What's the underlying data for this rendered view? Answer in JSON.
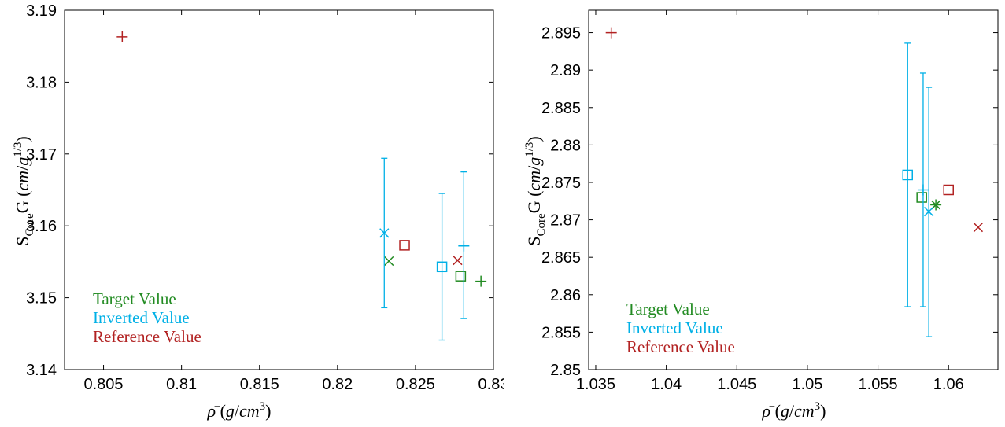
{
  "colors": {
    "target": "#228b22",
    "inverted": "#00b0e6",
    "reference": "#b22222",
    "axis": "#000000"
  },
  "chart_data": [
    {
      "type": "scatter",
      "xlabel": "ρ̄ (g/cm³)",
      "ylabel": "S_Core G (cm/g^1/3)",
      "xlim": [
        0.8025,
        0.83
      ],
      "ylim": [
        3.14,
        3.19
      ],
      "x_ticks": [
        "0.805",
        "0.81",
        "0.815",
        "0.82",
        "0.825",
        "0.83"
      ],
      "x_tick_values": [
        0.805,
        0.81,
        0.815,
        0.82,
        0.825,
        0.83
      ],
      "y_ticks": [
        "3.14",
        "3.15",
        "3.16",
        "3.17",
        "3.18",
        "3.19"
      ],
      "y_tick_values": [
        3.14,
        3.15,
        3.16,
        3.17,
        3.18,
        3.19
      ],
      "grid": false,
      "legend": {
        "placement": "bottom-left",
        "entries": [
          "Target Value",
          "Inverted Value",
          "Reference Value"
        ]
      },
      "series": [
        {
          "name": "Target Value",
          "color": "#228b22",
          "points": [
            {
              "x": 0.8233,
              "y": 3.1551,
              "marker": "x"
            },
            {
              "x": 0.8279,
              "y": 3.153,
              "marker": "square"
            },
            {
              "x": 0.8292,
              "y": 3.1523,
              "marker": "plus"
            }
          ]
        },
        {
          "name": "Inverted Value",
          "color": "#00b0e6",
          "points": [
            {
              "x": 0.823,
              "y": 3.159,
              "marker": "x",
              "err_low": 3.1486,
              "err_high": 3.1694
            },
            {
              "x": 0.8267,
              "y": 3.1543,
              "marker": "square",
              "err_low": 3.1441,
              "err_high": 3.1645
            },
            {
              "x": 0.8281,
              "y": 3.1572,
              "marker": "plus",
              "err_low": 3.1471,
              "err_high": 3.1675
            }
          ]
        },
        {
          "name": "Reference Value",
          "color": "#b22222",
          "points": [
            {
              "x": 0.8062,
              "y": 3.1863,
              "marker": "plus"
            },
            {
              "x": 0.8243,
              "y": 3.1573,
              "marker": "square"
            },
            {
              "x": 0.8277,
              "y": 3.1552,
              "marker": "x"
            }
          ]
        }
      ]
    },
    {
      "type": "scatter",
      "xlabel": "ρ̄ (g/cm³)",
      "ylabel": "S_Core G (cm/g^1/3)",
      "xlim": [
        1.0345,
        1.0635
      ],
      "ylim": [
        2.85,
        2.898
      ],
      "x_ticks": [
        "1.035",
        "1.04",
        "1.045",
        "1.05",
        "1.055",
        "1.06"
      ],
      "x_tick_values": [
        1.035,
        1.04,
        1.045,
        1.05,
        1.055,
        1.06
      ],
      "y_ticks": [
        "2.85",
        "2.855",
        "2.86",
        "2.865",
        "2.87",
        "2.875",
        "2.88",
        "2.885",
        "2.89",
        "2.895"
      ],
      "y_tick_values": [
        2.85,
        2.855,
        2.86,
        2.865,
        2.87,
        2.875,
        2.88,
        2.885,
        2.89,
        2.895
      ],
      "grid": false,
      "legend": {
        "placement": "bottom-left",
        "entries": [
          "Target Value",
          "Inverted Value",
          "Reference Value"
        ]
      },
      "series": [
        {
          "name": "Target Value",
          "color": "#228b22",
          "points": [
            {
              "x": 1.0581,
              "y": 2.873,
              "marker": "square"
            },
            {
              "x": 1.0591,
              "y": 2.872,
              "marker": "asterisk"
            }
          ]
        },
        {
          "name": "Inverted Value",
          "color": "#00b0e6",
          "points": [
            {
              "x": 1.0571,
              "y": 2.876,
              "marker": "square",
              "err_low": 2.8584,
              "err_high": 2.8936
            },
            {
              "x": 1.0582,
              "y": 2.874,
              "marker": "plus",
              "err_low": 2.8584,
              "err_high": 2.8896
            },
            {
              "x": 1.0586,
              "y": 2.8711,
              "marker": "x",
              "err_low": 2.8544,
              "err_high": 2.8877
            }
          ]
        },
        {
          "name": "Reference Value",
          "color": "#b22222",
          "points": [
            {
              "x": 1.0361,
              "y": 2.895,
              "marker": "plus"
            },
            {
              "x": 1.06,
              "y": 2.874,
              "marker": "square"
            },
            {
              "x": 1.0621,
              "y": 2.869,
              "marker": "x"
            }
          ]
        }
      ]
    }
  ]
}
